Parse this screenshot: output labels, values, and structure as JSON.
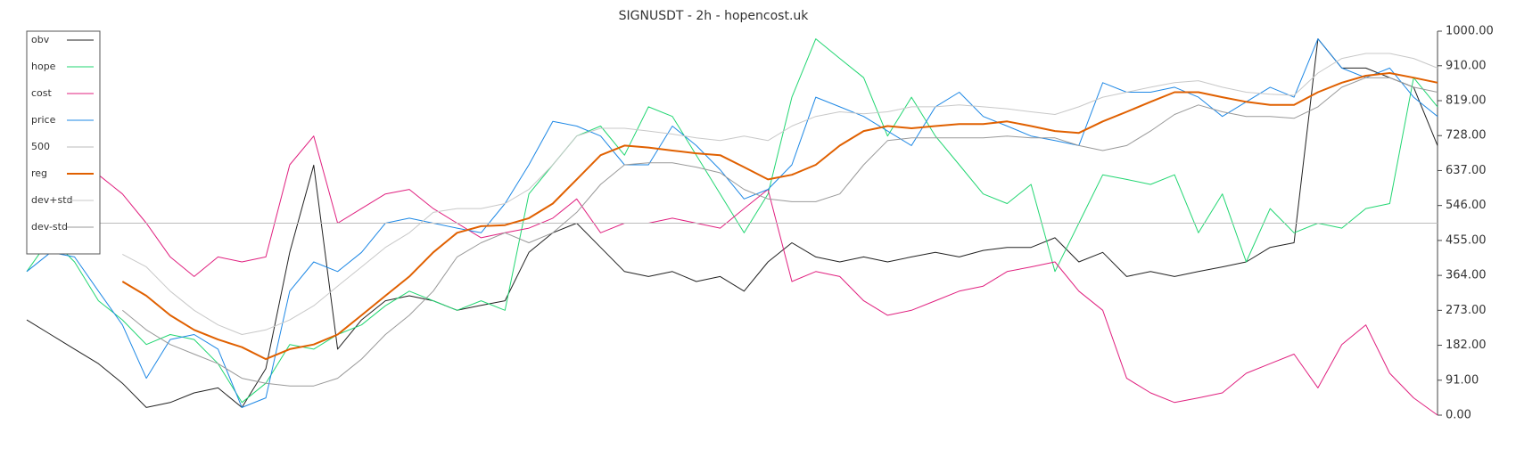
{
  "chart_data": {
    "type": "line",
    "title": "SIGNUSDT - 2h - hopencost.uk",
    "ylim": [
      0,
      1000
    ],
    "yticks": [
      {
        "value": 0,
        "label": "0.00"
      },
      {
        "value": 91,
        "label": "91.00"
      },
      {
        "value": 182,
        "label": "182.00"
      },
      {
        "value": 273,
        "label": "273.00"
      },
      {
        "value": 364,
        "label": "364.00"
      },
      {
        "value": 455,
        "label": "455.00"
      },
      {
        "value": 546,
        "label": "546.00"
      },
      {
        "value": 637,
        "label": "637.00"
      },
      {
        "value": 728,
        "label": "728.00"
      },
      {
        "value": 819,
        "label": "819.00"
      },
      {
        "value": 910,
        "label": "910.00"
      },
      {
        "value": 1000,
        "label": "1000.00"
      }
    ],
    "legend": "upper left",
    "series": [
      {
        "name": "obv",
        "color": "#222222",
        "width": 1,
        "values": [
          248,
          210,
          172,
          134,
          83,
          20,
          33,
          58,
          71,
          20,
          121,
          424,
          651,
          172,
          248,
          298,
          311,
          298,
          273,
          286,
          298,
          424,
          475,
          500,
          437,
          374,
          361,
          374,
          348,
          361,
          323,
          399,
          449,
          412,
          399,
          412,
          399,
          412,
          424,
          412,
          429,
          437,
          437,
          462,
          399,
          424,
          361,
          374,
          361,
          374,
          386,
          399,
          437,
          449,
          980,
          904,
          904,
          879,
          854,
          702
        ]
      },
      {
        "name": "hope",
        "color": "#22d672",
        "width": 1,
        "values": [
          374,
          462,
          399,
          298,
          248,
          184,
          210,
          197,
          134,
          33,
          83,
          184,
          172,
          210,
          235,
          285,
          323,
          298,
          273,
          298,
          273,
          576,
          652,
          727,
          753,
          677,
          803,
          778,
          677,
          576,
          475,
          576,
          828,
          980,
          929,
          879,
          727,
          828,
          727,
          652,
          576,
          551,
          601,
          374,
          500,
          626,
          614,
          601,
          626,
          475,
          576,
          399,
          538,
          475,
          500,
          487,
          538,
          551,
          879,
          803
        ]
      },
      {
        "name": "cost",
        "color": "#e0207f",
        "width": 1,
        "values": [
          null,
          null,
          null,
          626,
          576,
          500,
          412,
          361,
          412,
          399,
          412,
          652,
          727,
          500,
          538,
          576,
          588,
          538,
          500,
          462,
          475,
          487,
          513,
          563,
          475,
          500,
          500,
          513,
          500,
          487,
          538,
          588,
          348,
          374,
          361,
          298,
          260,
          273,
          298,
          323,
          336,
          374,
          386,
          399,
          323,
          273,
          96,
          58,
          33,
          45,
          58,
          109,
          134,
          159,
          71,
          184,
          235,
          109,
          45,
          0
        ]
      },
      {
        "name": "price",
        "color": "#1e88e5",
        "width": 1,
        "values": [
          374,
          424,
          412,
          323,
          235,
          96,
          197,
          210,
          172,
          20,
          45,
          323,
          399,
          374,
          424,
          500,
          513,
          500,
          487,
          475,
          551,
          652,
          765,
          753,
          727,
          652,
          652,
          753,
          702,
          639,
          563,
          588,
          652,
          828,
          803,
          778,
          740,
          702,
          803,
          841,
          778,
          753,
          727,
          715,
          702,
          866,
          841,
          841,
          854,
          828,
          778,
          816,
          854,
          828,
          980,
          904,
          879,
          904,
          828,
          778
        ]
      },
      {
        "name": "500",
        "color": "#bbbbbb",
        "width": 1,
        "values": [
          500,
          500,
          500,
          500,
          500,
          500,
          500,
          500,
          500,
          500,
          500,
          500,
          500,
          500,
          500,
          500,
          500,
          500,
          500,
          500,
          500,
          500,
          500,
          500,
          500,
          500,
          500,
          500,
          500,
          500,
          500,
          500,
          500,
          500,
          500,
          500,
          500,
          500,
          500,
          500,
          500,
          500,
          500,
          500,
          500,
          500,
          500,
          500,
          500,
          500,
          500,
          500,
          500,
          500,
          500,
          500,
          500,
          500,
          500,
          500
        ]
      },
      {
        "name": "reg",
        "color": "#e06000",
        "width": 2,
        "values": [
          null,
          null,
          null,
          null,
          348,
          311,
          260,
          222,
          197,
          177,
          146,
          172,
          184,
          210,
          260,
          311,
          361,
          424,
          475,
          492,
          495,
          513,
          551,
          614,
          677,
          702,
          697,
          689,
          682,
          677,
          646,
          614,
          626,
          652,
          702,
          740,
          753,
          747,
          753,
          758,
          758,
          765,
          753,
          740,
          735,
          765,
          790,
          816,
          841,
          841,
          828,
          816,
          808,
          808,
          841,
          866,
          884,
          891,
          879,
          866
        ]
      },
      {
        "name": "dev+std",
        "color": "#c8c8c8",
        "width": 1,
        "values": [
          null,
          null,
          null,
          null,
          419,
          386,
          323,
          273,
          235,
          210,
          222,
          248,
          285,
          336,
          386,
          437,
          475,
          528,
          538,
          538,
          551,
          588,
          652,
          727,
          747,
          747,
          740,
          732,
          722,
          715,
          727,
          715,
          753,
          778,
          790,
          785,
          790,
          803,
          803,
          808,
          803,
          798,
          790,
          783,
          803,
          828,
          841,
          854,
          866,
          871,
          854,
          841,
          836,
          833,
          891,
          929,
          942,
          942,
          929,
          904
        ]
      },
      {
        "name": "dev-std",
        "color": "#999999",
        "width": 1,
        "values": [
          null,
          null,
          null,
          null,
          273,
          222,
          184,
          159,
          134,
          96,
          83,
          76,
          76,
          96,
          146,
          210,
          260,
          323,
          412,
          449,
          475,
          449,
          475,
          528,
          601,
          652,
          657,
          657,
          646,
          631,
          588,
          563,
          556,
          556,
          576,
          652,
          715,
          722,
          722,
          722,
          722,
          727,
          722,
          722,
          702,
          689,
          702,
          740,
          783,
          808,
          790,
          778,
          778,
          773,
          803,
          854,
          879,
          879,
          854,
          841
        ]
      }
    ]
  }
}
